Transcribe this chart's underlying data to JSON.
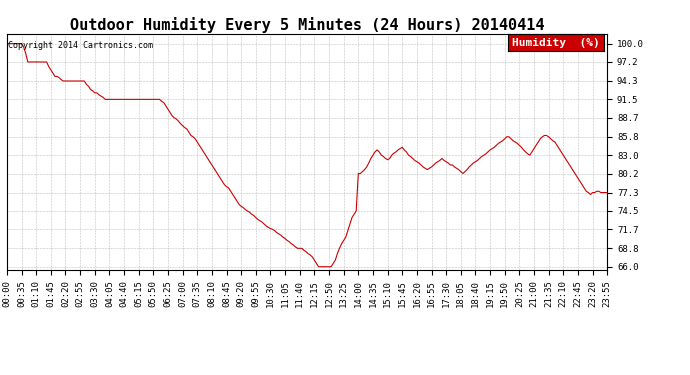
{
  "title": "Outdoor Humidity Every 5 Minutes (24 Hours) 20140414",
  "copyright": "Copyright 2014 Cartronics.com",
  "legend_label": "Humidity  (%)",
  "line_color": "#cc0000",
  "bg_color": "#ffffff",
  "grid_color": "#b0b0b0",
  "yticks": [
    66.0,
    68.8,
    71.7,
    74.5,
    77.3,
    80.2,
    83.0,
    85.8,
    88.7,
    91.5,
    94.3,
    97.2,
    100.0
  ],
  "ylim": [
    65.5,
    101.5
  ],
  "humidity_values": [
    100.0,
    100.0,
    100.0,
    100.0,
    100.0,
    100.0,
    100.0,
    100.0,
    99.5,
    98.5,
    97.2,
    97.2,
    97.2,
    97.2,
    97.2,
    97.2,
    97.2,
    97.2,
    97.2,
    97.2,
    96.5,
    96.0,
    95.5,
    95.0,
    95.0,
    94.8,
    94.5,
    94.3,
    94.3,
    94.3,
    94.3,
    94.3,
    94.3,
    94.3,
    94.3,
    94.3,
    94.3,
    94.3,
    93.8,
    93.5,
    93.0,
    92.8,
    92.5,
    92.5,
    92.2,
    92.0,
    91.8,
    91.5,
    91.5,
    91.5,
    91.5,
    91.5,
    91.5,
    91.5,
    91.5,
    91.5,
    91.5,
    91.5,
    91.5,
    91.5,
    91.5,
    91.5,
    91.5,
    91.5,
    91.5,
    91.5,
    91.5,
    91.5,
    91.5,
    91.5,
    91.5,
    91.5,
    91.5,
    91.5,
    91.2,
    91.0,
    90.5,
    90.0,
    89.5,
    89.0,
    88.7,
    88.5,
    88.2,
    87.8,
    87.5,
    87.2,
    87.0,
    86.5,
    86.0,
    85.8,
    85.5,
    85.0,
    84.5,
    84.0,
    83.5,
    83.0,
    82.5,
    82.0,
    81.5,
    81.0,
    80.5,
    80.0,
    79.5,
    79.0,
    78.5,
    78.2,
    78.0,
    77.5,
    77.0,
    76.5,
    76.0,
    75.5,
    75.2,
    75.0,
    74.7,
    74.5,
    74.3,
    74.0,
    73.8,
    73.5,
    73.2,
    73.0,
    72.8,
    72.5,
    72.2,
    72.0,
    71.8,
    71.7,
    71.5,
    71.2,
    71.0,
    70.8,
    70.5,
    70.3,
    70.0,
    69.8,
    69.5,
    69.3,
    69.0,
    68.8,
    68.8,
    68.8,
    68.5,
    68.3,
    68.0,
    67.8,
    67.5,
    67.0,
    66.5,
    66.0,
    66.0,
    66.0,
    66.0,
    66.0,
    66.0,
    66.0,
    66.5,
    67.0,
    68.0,
    68.8,
    69.5,
    70.0,
    70.5,
    71.5,
    72.5,
    73.5,
    74.0,
    74.5,
    80.2,
    80.2,
    80.5,
    80.8,
    81.2,
    81.8,
    82.5,
    83.0,
    83.5,
    83.8,
    83.5,
    83.0,
    82.8,
    82.5,
    82.3,
    82.5,
    83.0,
    83.3,
    83.5,
    83.8,
    84.0,
    84.2,
    83.8,
    83.5,
    83.0,
    82.8,
    82.5,
    82.2,
    82.0,
    81.8,
    81.5,
    81.2,
    81.0,
    80.8,
    81.0,
    81.2,
    81.5,
    81.8,
    82.0,
    82.2,
    82.5,
    82.2,
    82.0,
    81.8,
    81.5,
    81.5,
    81.2,
    81.0,
    80.8,
    80.5,
    80.2,
    80.5,
    80.8,
    81.2,
    81.5,
    81.8,
    82.0,
    82.2,
    82.5,
    82.8,
    83.0,
    83.2,
    83.5,
    83.8,
    84.0,
    84.2,
    84.5,
    84.8,
    85.0,
    85.2,
    85.5,
    85.8,
    85.8,
    85.5,
    85.2,
    85.0,
    84.8,
    84.5,
    84.2,
    83.8,
    83.5,
    83.2,
    83.0,
    83.5,
    84.0,
    84.5,
    85.0,
    85.5,
    85.8,
    86.0,
    86.0,
    85.8,
    85.5,
    85.2,
    85.0,
    84.5,
    84.0,
    83.5,
    83.0,
    82.5,
    82.0,
    81.5,
    81.0,
    80.5,
    80.0,
    79.5,
    79.0,
    78.5,
    78.0,
    77.5,
    77.3,
    77.0,
    77.3,
    77.3,
    77.5,
    77.5,
    77.3,
    77.3,
    77.3,
    77.3
  ],
  "xtick_interval": 7,
  "title_fontsize": 11,
  "tick_fontsize": 6.5,
  "legend_fontsize": 8,
  "figwidth": 6.9,
  "figheight": 3.75,
  "dpi": 100
}
